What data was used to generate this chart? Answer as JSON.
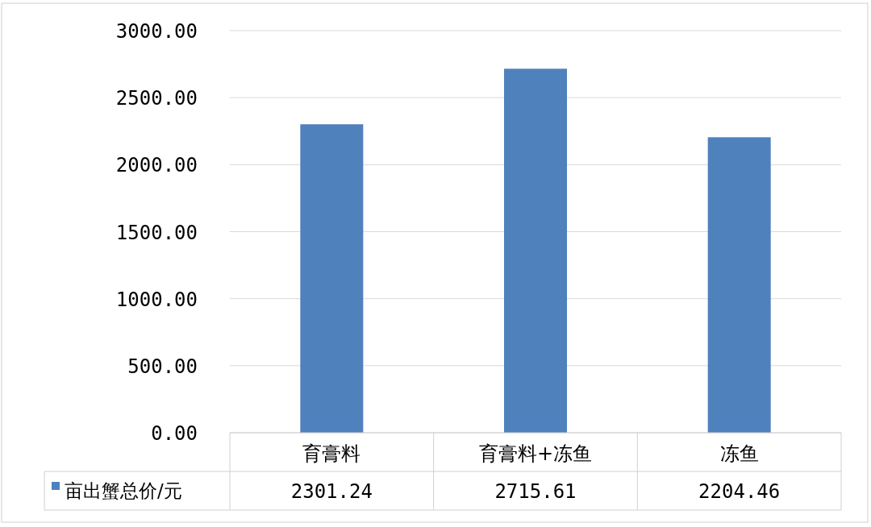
{
  "chart_data": {
    "type": "bar",
    "categories": [
      "育膏料",
      "育膏料+冻鱼",
      "冻鱼"
    ],
    "series": [
      {
        "name": "亩出蟹总价/元",
        "color": "#4f81bd",
        "values": [
          2301.24,
          2715.61,
          2204.46
        ]
      }
    ],
    "ylim": [
      0,
      3000
    ],
    "yticks": [
      {
        "value": 0,
        "label": "0.00"
      },
      {
        "value": 500,
        "label": "500.00"
      },
      {
        "value": 1000,
        "label": "1000.00"
      },
      {
        "value": 1500,
        "label": "1500.00"
      },
      {
        "value": 2000,
        "label": "2000.00"
      },
      {
        "value": 2500,
        "label": "2500.00"
      },
      {
        "value": 3000,
        "label": "3000.00"
      }
    ],
    "grid": "y",
    "data_labels": true,
    "legend": "bottom"
  }
}
